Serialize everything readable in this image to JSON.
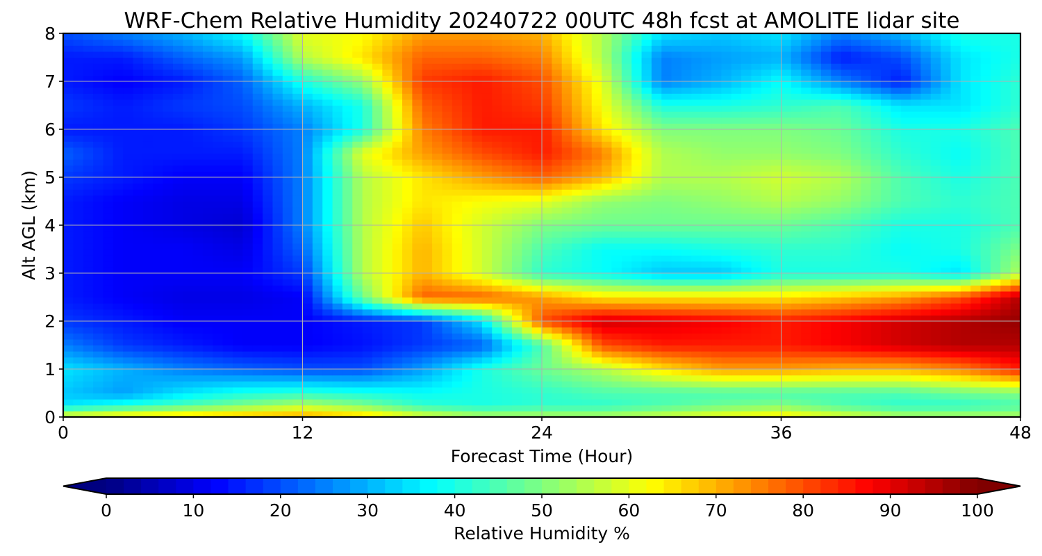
{
  "chart_data": {
    "type": "heatmap",
    "title": "WRF-Chem Relative Humidity 20240722 00UTC 48h fcst at AMOLITE lidar site",
    "xlabel": "Forecast Time (Hour)",
    "ylabel": "Alt AGL (km)",
    "xlim": [
      0,
      48
    ],
    "ylim": [
      0,
      8
    ],
    "x_ticks": [
      0,
      12,
      24,
      36,
      48
    ],
    "y_ticks": [
      0,
      1,
      2,
      3,
      4,
      5,
      6,
      7,
      8
    ],
    "grid": true,
    "x": [
      0,
      3,
      6,
      9,
      12,
      15,
      18,
      21,
      24,
      27,
      30,
      33,
      36,
      39,
      42,
      45,
      48
    ],
    "y": [
      0,
      0.25,
      0.5,
      1,
      1.5,
      2,
      2.5,
      3,
      3.5,
      4,
      4.5,
      5,
      5.5,
      6,
      6.5,
      7,
      7.5,
      8
    ],
    "z": [
      [
        62,
        66,
        68,
        70,
        72,
        68,
        60,
        55,
        55,
        55,
        58,
        62,
        65,
        60,
        55,
        55,
        55
      ],
      [
        35,
        40,
        45,
        50,
        55,
        50,
        42,
        40,
        42,
        42,
        45,
        48,
        50,
        45,
        42,
        42,
        45
      ],
      [
        32,
        28,
        35,
        40,
        42,
        40,
        38,
        40,
        42,
        45,
        45,
        45,
        45,
        45,
        45,
        48,
        50
      ],
      [
        35,
        30,
        25,
        22,
        20,
        20,
        28,
        40,
        48,
        55,
        65,
        72,
        72,
        70,
        70,
        75,
        85
      ],
      [
        25,
        18,
        15,
        12,
        12,
        14,
        18,
        22,
        45,
        80,
        85,
        85,
        85,
        88,
        92,
        95,
        95
      ],
      [
        18,
        15,
        12,
        12,
        12,
        15,
        18,
        35,
        80,
        92,
        90,
        88,
        85,
        88,
        92,
        95,
        98
      ],
      [
        15,
        12,
        10,
        10,
        12,
        48,
        78,
        78,
        72,
        65,
        65,
        65,
        65,
        68,
        72,
        80,
        95
      ],
      [
        15,
        12,
        12,
        12,
        18,
        55,
        70,
        58,
        42,
        38,
        32,
        32,
        40,
        40,
        40,
        35,
        55
      ],
      [
        15,
        12,
        12,
        10,
        22,
        55,
        70,
        58,
        45,
        38,
        38,
        40,
        42,
        42,
        38,
        40,
        50
      ],
      [
        15,
        12,
        10,
        8,
        25,
        55,
        68,
        58,
        50,
        48,
        48,
        48,
        48,
        45,
        40,
        40,
        45
      ],
      [
        15,
        12,
        10,
        10,
        25,
        55,
        65,
        62,
        60,
        52,
        50,
        52,
        55,
        52,
        45,
        42,
        45
      ],
      [
        18,
        15,
        12,
        12,
        25,
        55,
        65,
        72,
        78,
        70,
        55,
        55,
        58,
        55,
        45,
        40,
        45
      ],
      [
        22,
        15,
        15,
        15,
        25,
        60,
        72,
        80,
        85,
        75,
        55,
        52,
        52,
        50,
        42,
        38,
        45
      ],
      [
        15,
        15,
        15,
        18,
        25,
        40,
        75,
        85,
        85,
        65,
        50,
        50,
        50,
        48,
        40,
        40,
        45
      ],
      [
        18,
        15,
        18,
        20,
        30,
        40,
        78,
        85,
        82,
        62,
        40,
        40,
        42,
        45,
        35,
        35,
        42
      ],
      [
        15,
        12,
        15,
        22,
        40,
        52,
        82,
        85,
        80,
        60,
        25,
        30,
        38,
        25,
        15,
        35,
        42
      ],
      [
        15,
        15,
        22,
        28,
        55,
        65,
        78,
        78,
        75,
        55,
        25,
        28,
        30,
        15,
        20,
        35,
        40
      ],
      [
        20,
        25,
        30,
        38,
        60,
        62,
        72,
        72,
        70,
        55,
        35,
        32,
        35,
        25,
        30,
        40,
        40
      ]
    ],
    "colorbar": {
      "label": "Relative Humidity %",
      "range": [
        0,
        100
      ],
      "ticks": [
        0,
        10,
        20,
        30,
        40,
        50,
        60,
        70,
        80,
        90,
        100
      ],
      "extend": "both",
      "colormap": "jet"
    }
  }
}
